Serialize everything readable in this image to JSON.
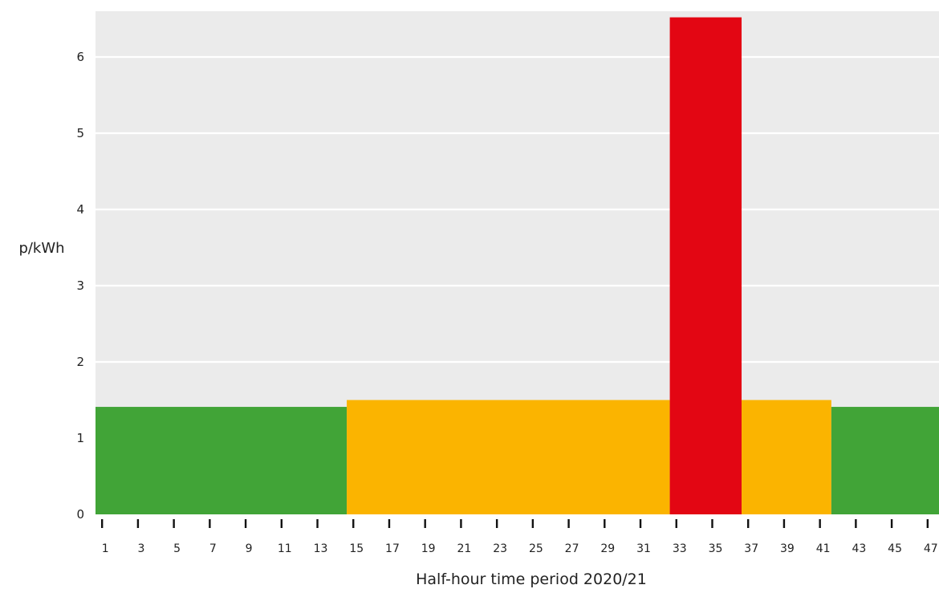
{
  "chart_data": {
    "type": "bar",
    "title": "",
    "xlabel": "Half-hour time period 2020/21",
    "ylabel": "p/kWh",
    "ylim": [
      0,
      6.6
    ],
    "yticks": [
      "0",
      "1",
      "2",
      "3",
      "4",
      "5",
      "6"
    ],
    "xlim": [
      0.5,
      47.5
    ],
    "xticks": [
      "1",
      "3",
      "5",
      "7",
      "9",
      "11",
      "13",
      "15",
      "17",
      "19",
      "21",
      "23",
      "25",
      "27",
      "29",
      "31",
      "33",
      "35",
      "37",
      "39",
      "41",
      "43",
      "45",
      "47"
    ],
    "grid": true,
    "legend": "none",
    "segments": [
      {
        "from_period": 1,
        "to_period": 14,
        "value": 1.41,
        "color": "#41a437"
      },
      {
        "from_period": 15,
        "to_period": 32,
        "value": 1.5,
        "color": "#fbb400"
      },
      {
        "from_period": 33,
        "to_period": 36,
        "value": 6.52,
        "color": "#e30613"
      },
      {
        "from_period": 37,
        "to_period": 41,
        "value": 1.5,
        "color": "#fbb400"
      },
      {
        "from_period": 42,
        "to_period": 47,
        "value": 1.41,
        "color": "#41a437"
      }
    ],
    "colors": {
      "panel": "#ebebeb",
      "grid": "#ffffff",
      "green": "#41a437",
      "amber": "#fbb400",
      "red": "#e30613"
    }
  }
}
